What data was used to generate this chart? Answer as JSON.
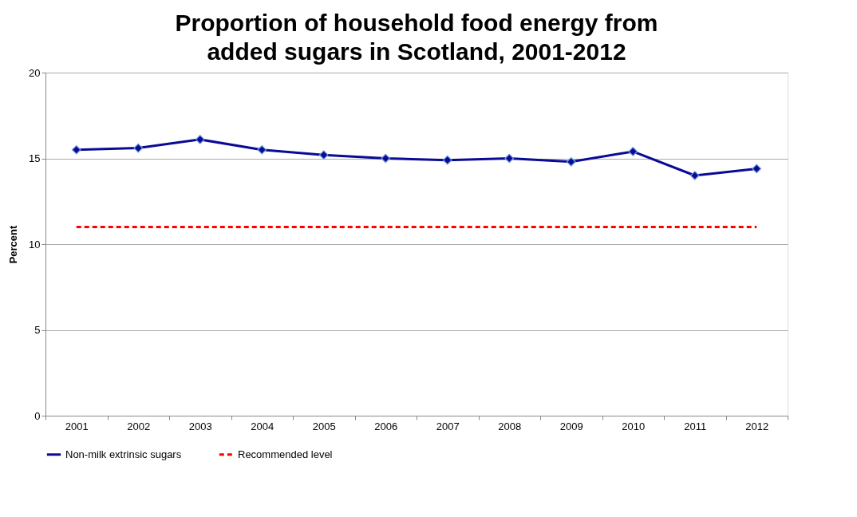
{
  "chart_data": {
    "type": "line",
    "title": "Proportion of household food energy from added sugars in Scotland, 2001-2012",
    "ylabel": "Percent",
    "categories": [
      "2001",
      "2002",
      "2003",
      "2004",
      "2005",
      "2006",
      "2007",
      "2008",
      "2009",
      "2010",
      "2011",
      "2012"
    ],
    "series": [
      {
        "name": "Non-milk extrinsic sugars",
        "color": "#0a0a96",
        "marker": "diamond",
        "line_style": "solid",
        "values": [
          15.5,
          15.6,
          16.1,
          15.5,
          15.2,
          15.0,
          14.9,
          15.0,
          14.8,
          15.4,
          14.0,
          14.4
        ]
      },
      {
        "name": "Recommended level",
        "color": "#ff0000",
        "marker": "none",
        "line_style": "dashed",
        "values": [
          11,
          11,
          11,
          11,
          11,
          11,
          11,
          11,
          11,
          11,
          11,
          11
        ]
      }
    ],
    "ylim": [
      0,
      20
    ],
    "yticks": [
      0,
      5,
      10,
      15,
      20
    ],
    "grid": "y",
    "legend": "bottom"
  }
}
